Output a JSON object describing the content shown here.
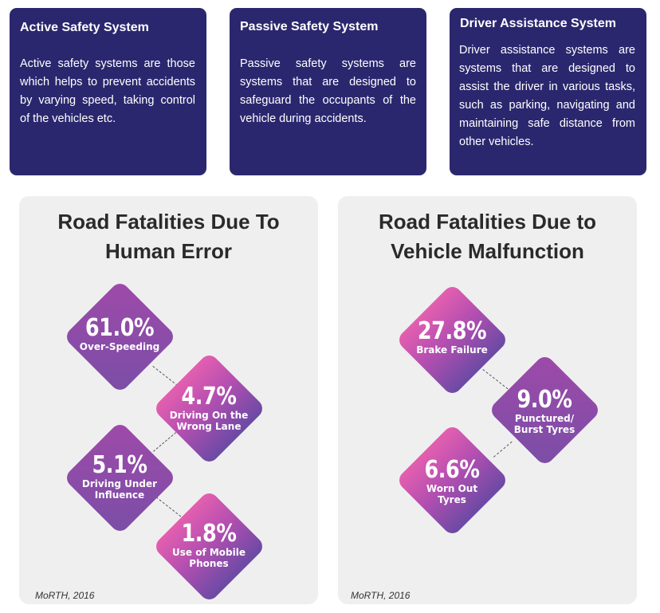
{
  "cards": [
    {
      "title": "Active Safety System",
      "body": "Active safety systems are those which helps to prevent accidents by varying speed, taking control of the vehicles etc."
    },
    {
      "title": "Passive Safety System",
      "body": "Passive safety systems are systems that are designed to safeguard the occupants of the vehicle during accidents."
    },
    {
      "title": "Driver Assistance System",
      "body": "Driver assistance systems are systems that are designed to assist the driver in various tasks, such as parking, navigating and maintaining safe distance from other vehicles."
    }
  ],
  "panels": [
    {
      "title_line1": "Road Fatalities Due To",
      "title_line2": "Human Error",
      "source": "MoRTH, 2016",
      "items": [
        {
          "value": "61.0%",
          "label_line1": "Over-Speeding",
          "label_line2": ""
        },
        {
          "value": "4.7%",
          "label_line1": "Driving On the",
          "label_line2": "Wrong Lane"
        },
        {
          "value": "5.1%",
          "label_line1": "Driving Under",
          "label_line2": "Influence"
        },
        {
          "value": "1.8%",
          "label_line1": "Use of Mobile",
          "label_line2": "Phones"
        }
      ]
    },
    {
      "title_line1": "Road Fatalities Due to",
      "title_line2": "Vehicle Malfunction",
      "source": "MoRTH, 2016",
      "items": [
        {
          "value": "27.8%",
          "label_line1": "Brake Failure",
          "label_line2": ""
        },
        {
          "value": "9.0%",
          "label_line1": "Punctured/",
          "label_line2": "Burst Tyres"
        },
        {
          "value": "6.6%",
          "label_line1": "Worn Out",
          "label_line2": "Tyres"
        }
      ]
    }
  ],
  "colors": {
    "card_bg": "#2b276e",
    "panel_bg": "#f0eff0",
    "diamond_purple": "#8a4ca8",
    "diamond_pink": "#e45faf"
  }
}
